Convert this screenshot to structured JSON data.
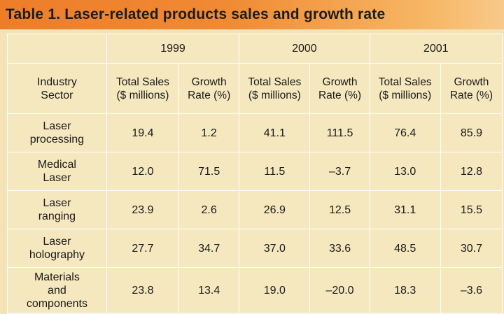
{
  "title": "Table 1. Laser-related products sales and growth rate",
  "table": {
    "years": [
      "1999",
      "2000",
      "2001"
    ],
    "sector_header": [
      "Industry",
      "Sector"
    ],
    "subheaders": [
      [
        "Total Sales",
        "($ millions)"
      ],
      [
        "Growth",
        "Rate (%)"
      ],
      [
        "Total Sales",
        "($ millions)"
      ],
      [
        "Growth",
        "Rate (%)"
      ],
      [
        "Total Sales",
        "($ millions)"
      ],
      [
        "Growth",
        "Rate (%)"
      ]
    ],
    "rows": [
      {
        "sector": [
          "Laser",
          "processing"
        ],
        "values": [
          "19.4",
          "1.2",
          "41.1",
          "111.5",
          "76.4",
          "85.9"
        ]
      },
      {
        "sector": [
          "Medical",
          "Laser"
        ],
        "values": [
          "12.0",
          "71.5",
          "11.5",
          "–3.7",
          "13.0",
          "12.8"
        ]
      },
      {
        "sector": [
          "Laser",
          "ranging"
        ],
        "values": [
          "23.9",
          "2.6",
          "26.9",
          "12.5",
          "31.1",
          "15.5"
        ]
      },
      {
        "sector": [
          "Laser",
          "holography"
        ],
        "values": [
          "27.7",
          "34.7",
          "37.0",
          "33.6",
          "48.5",
          "30.7"
        ]
      },
      {
        "sector": [
          "Materials",
          "and",
          "components"
        ],
        "values": [
          "23.8",
          "13.4",
          "19.0",
          "–20.0",
          "18.3",
          "–3.6"
        ]
      }
    ]
  }
}
